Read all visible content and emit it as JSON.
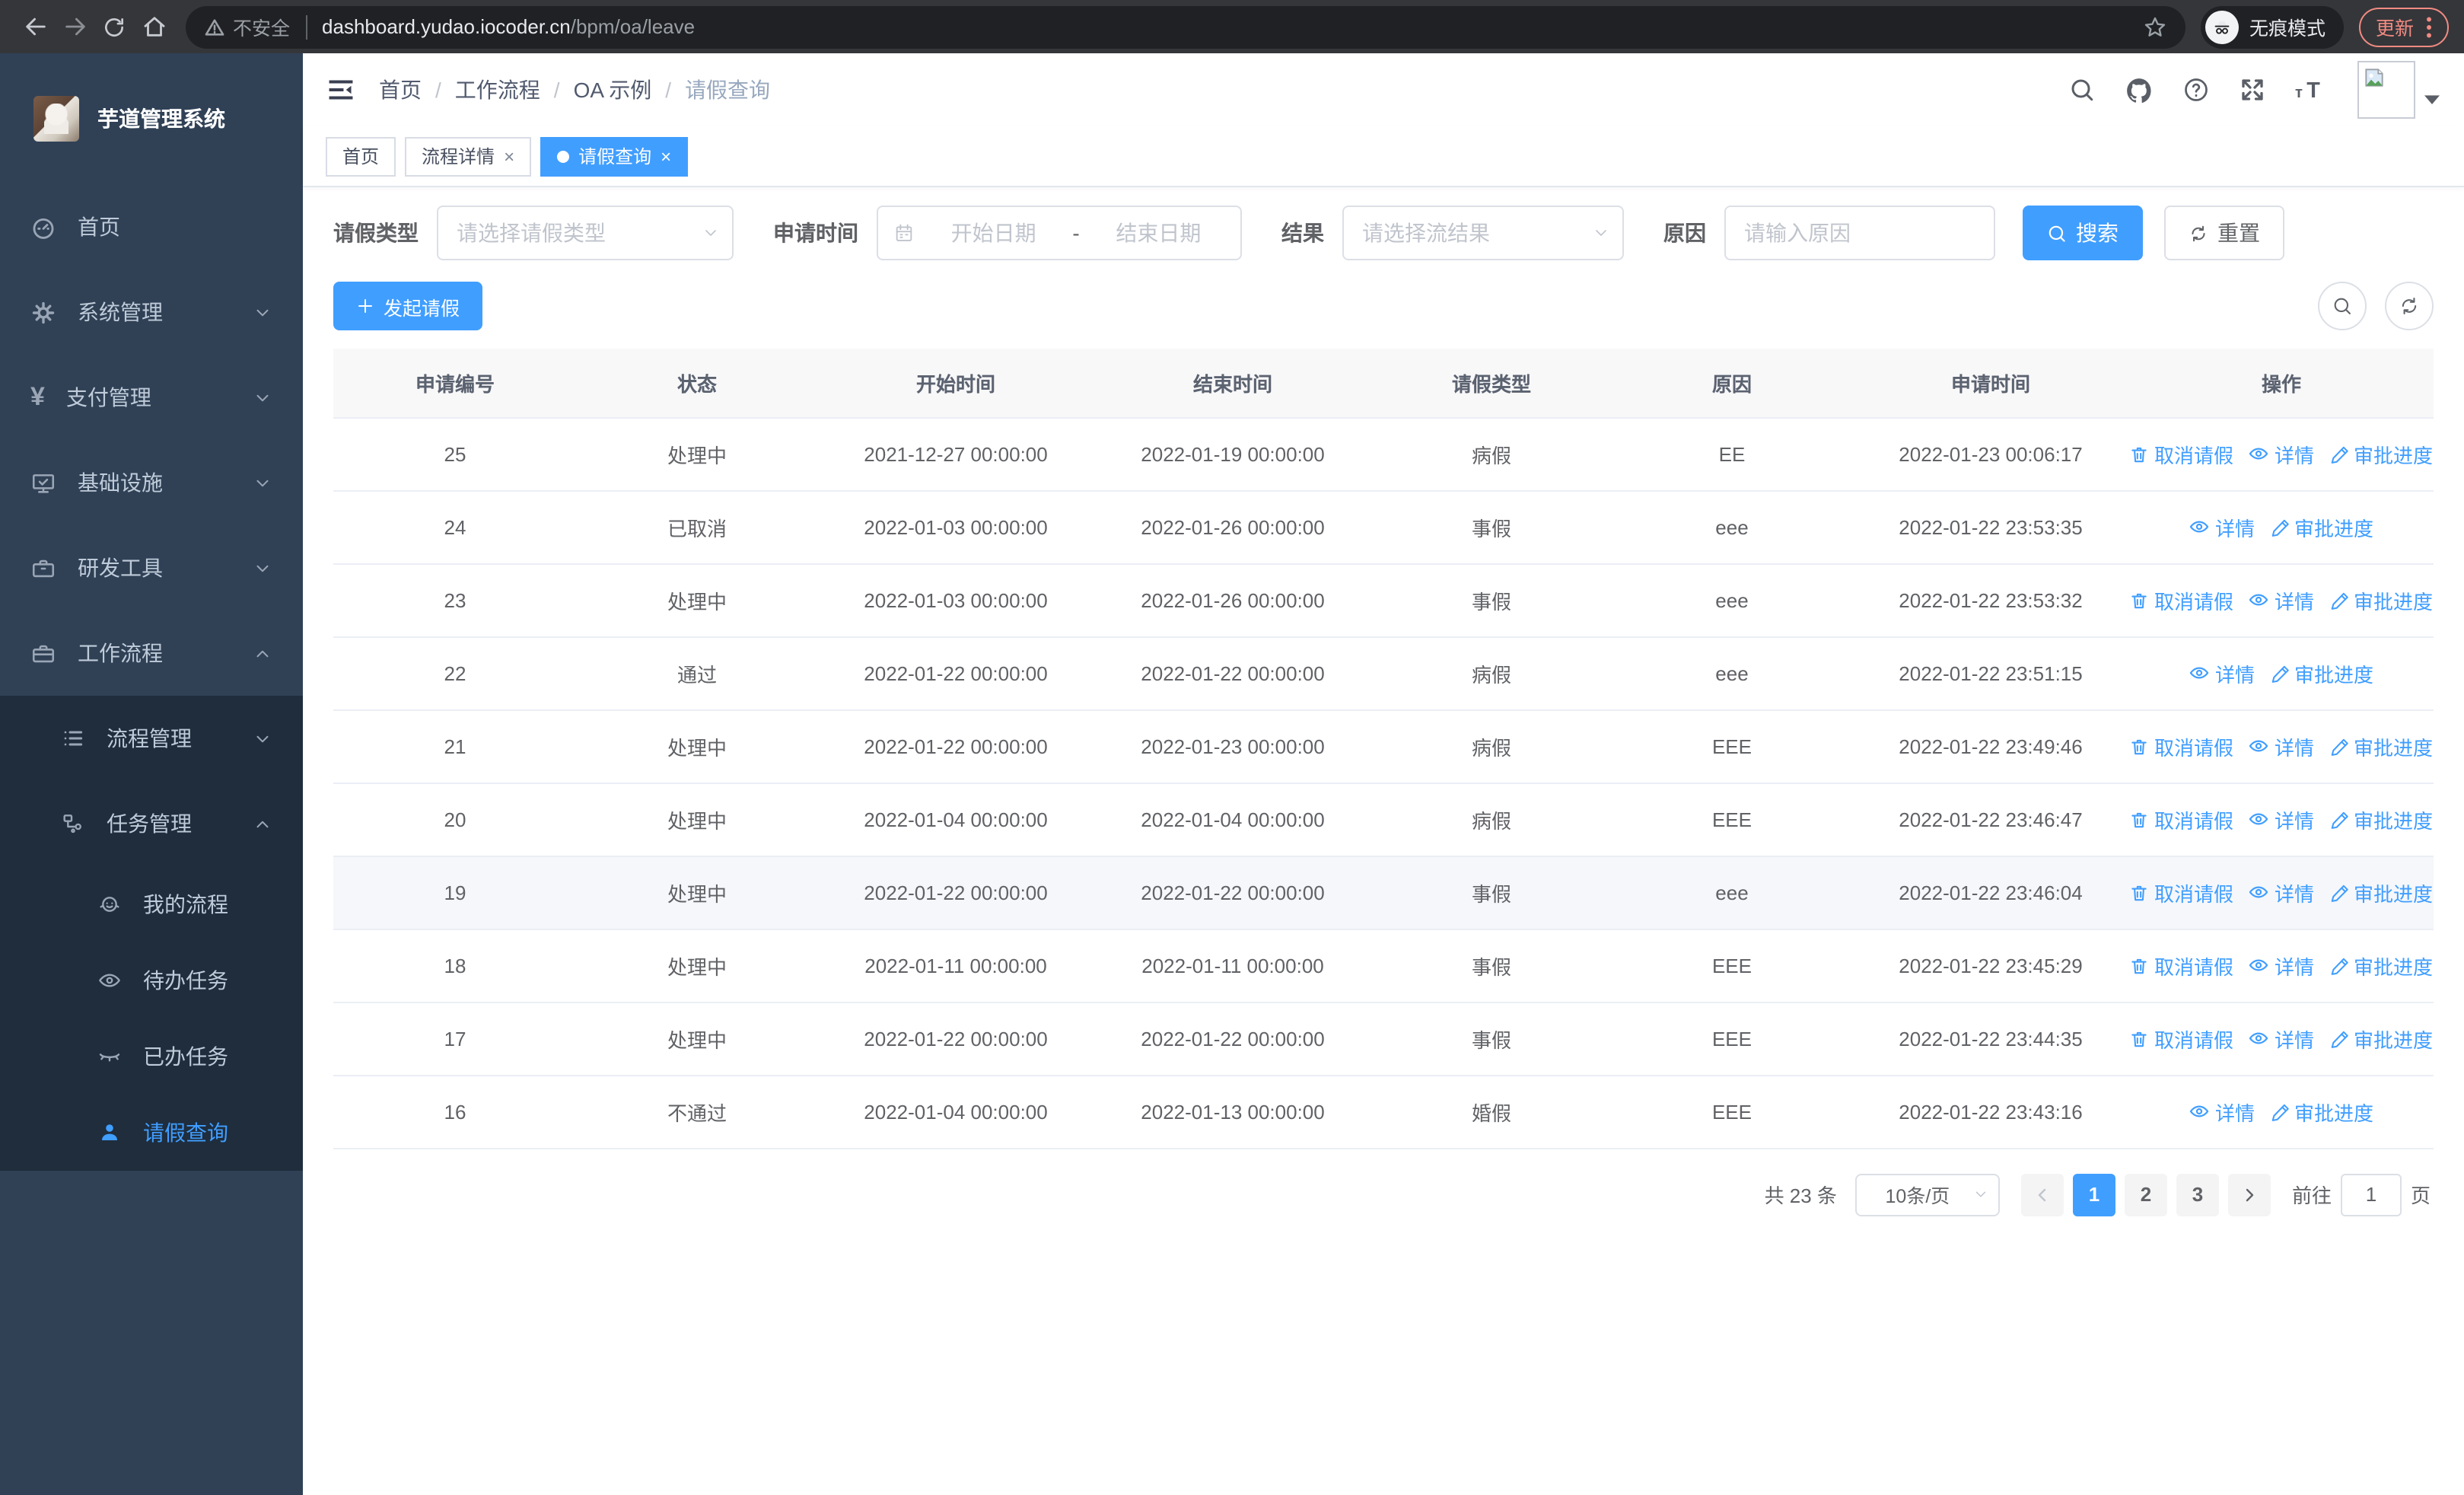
{
  "browser": {
    "security_label": "不安全",
    "url_host": "dashboard.yudao.iocoder.cn",
    "url_path": "/bpm/oa/leave",
    "incognito_label": "无痕模式",
    "update_label": "更新"
  },
  "sidebar": {
    "title": "芋道管理系统",
    "items": [
      {
        "label": "首页"
      },
      {
        "label": "系统管理"
      },
      {
        "label": "支付管理"
      },
      {
        "label": "基础设施"
      },
      {
        "label": "研发工具"
      },
      {
        "label": "工作流程"
      },
      {
        "label": "流程管理"
      },
      {
        "label": "任务管理"
      },
      {
        "label": "我的流程"
      },
      {
        "label": "待办任务"
      },
      {
        "label": "已办任务"
      },
      {
        "label": "请假查询"
      }
    ]
  },
  "breadcrumb": {
    "items": [
      "首页",
      "工作流程",
      "OA 示例",
      "请假查询"
    ],
    "separator": "/"
  },
  "tabs": [
    {
      "label": "首页",
      "closable": false,
      "active": false
    },
    {
      "label": "流程详情",
      "closable": true,
      "active": false
    },
    {
      "label": "请假查询",
      "closable": true,
      "active": true
    }
  ],
  "filters": {
    "type_label": "请假类型",
    "type_placeholder": "请选择请假类型",
    "time_label": "申请时间",
    "date_start_placeholder": "开始日期",
    "date_separator": "-",
    "date_end_placeholder": "结束日期",
    "result_label": "结果",
    "result_placeholder": "请选择流结果",
    "reason_label": "原因",
    "reason_placeholder": "请输入原因",
    "search_label": "搜索",
    "reset_label": "重置"
  },
  "toolbar": {
    "create_label": "发起请假"
  },
  "table": {
    "columns": [
      "申请编号",
      "状态",
      "开始时间",
      "结束时间",
      "请假类型",
      "原因",
      "申请时间",
      "操作"
    ],
    "action_labels": {
      "cancel": "取消请假",
      "detail": "详情",
      "progress": "审批进度"
    },
    "rows": [
      {
        "id": "25",
        "status": "处理中",
        "start": "2021-12-27 00:00:00",
        "end": "2022-01-19 00:00:00",
        "type": "病假",
        "reason": "EE",
        "apply_time": "2022-01-23 00:06:17",
        "actions": [
          "cancel",
          "detail",
          "progress"
        ],
        "highlighted": false
      },
      {
        "id": "24",
        "status": "已取消",
        "start": "2022-01-03 00:00:00",
        "end": "2022-01-26 00:00:00",
        "type": "事假",
        "reason": "eee",
        "apply_time": "2022-01-22 23:53:35",
        "actions": [
          "detail",
          "progress"
        ],
        "highlighted": false
      },
      {
        "id": "23",
        "status": "处理中",
        "start": "2022-01-03 00:00:00",
        "end": "2022-01-26 00:00:00",
        "type": "事假",
        "reason": "eee",
        "apply_time": "2022-01-22 23:53:32",
        "actions": [
          "cancel",
          "detail",
          "progress"
        ],
        "highlighted": false
      },
      {
        "id": "22",
        "status": "通过",
        "start": "2022-01-22 00:00:00",
        "end": "2022-01-22 00:00:00",
        "type": "病假",
        "reason": "eee",
        "apply_time": "2022-01-22 23:51:15",
        "actions": [
          "detail",
          "progress"
        ],
        "highlighted": false
      },
      {
        "id": "21",
        "status": "处理中",
        "start": "2022-01-22 00:00:00",
        "end": "2022-01-23 00:00:00",
        "type": "病假",
        "reason": "EEE",
        "apply_time": "2022-01-22 23:49:46",
        "actions": [
          "cancel",
          "detail",
          "progress"
        ],
        "highlighted": false
      },
      {
        "id": "20",
        "status": "处理中",
        "start": "2022-01-04 00:00:00",
        "end": "2022-01-04 00:00:00",
        "type": "病假",
        "reason": "EEE",
        "apply_time": "2022-01-22 23:46:47",
        "actions": [
          "cancel",
          "detail",
          "progress"
        ],
        "highlighted": false
      },
      {
        "id": "19",
        "status": "处理中",
        "start": "2022-01-22 00:00:00",
        "end": "2022-01-22 00:00:00",
        "type": "事假",
        "reason": "eee",
        "apply_time": "2022-01-22 23:46:04",
        "actions": [
          "cancel",
          "detail",
          "progress"
        ],
        "highlighted": true
      },
      {
        "id": "18",
        "status": "处理中",
        "start": "2022-01-11 00:00:00",
        "end": "2022-01-11 00:00:00",
        "type": "事假",
        "reason": "EEE",
        "apply_time": "2022-01-22 23:45:29",
        "actions": [
          "cancel",
          "detail",
          "progress"
        ],
        "highlighted": false
      },
      {
        "id": "17",
        "status": "处理中",
        "start": "2022-01-22 00:00:00",
        "end": "2022-01-22 00:00:00",
        "type": "事假",
        "reason": "EEE",
        "apply_time": "2022-01-22 23:44:35",
        "actions": [
          "cancel",
          "detail",
          "progress"
        ],
        "highlighted": false
      },
      {
        "id": "16",
        "status": "不通过",
        "start": "2022-01-04 00:00:00",
        "end": "2022-01-13 00:00:00",
        "type": "婚假",
        "reason": "EEE",
        "apply_time": "2022-01-22 23:43:16",
        "actions": [
          "detail",
          "progress"
        ],
        "highlighted": false
      }
    ]
  },
  "pagination": {
    "total_label": "共 23 条",
    "page_size_label": "10条/页",
    "pages": [
      "1",
      "2",
      "3"
    ],
    "active_page": "1",
    "goto_prefix": "前往",
    "goto_value": "1",
    "goto_suffix": "页"
  },
  "colors": {
    "accent": "#409eff",
    "sidebar_bg": "#304156",
    "submenu_bg": "#1f2d3d",
    "update_red": "#f28b82"
  }
}
